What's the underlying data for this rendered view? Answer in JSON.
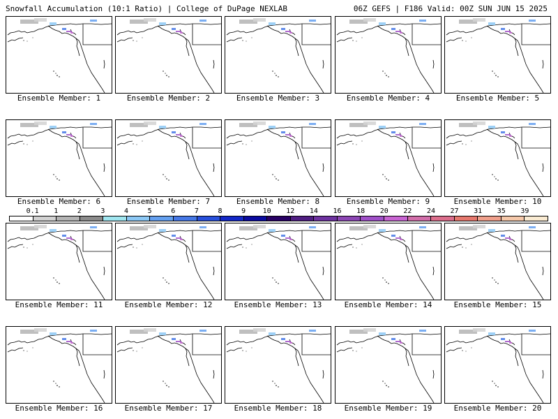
{
  "header": {
    "left_title": "Snowfall Accumulation (10:1 Ratio) | College of DuPage NEXLAB",
    "right_title": "06Z GEFS | F186 Valid: 00Z SUN JUN 15 2025"
  },
  "colorbar": {
    "labels": [
      "0.1",
      "1",
      "2",
      "3",
      "4",
      "5",
      "6",
      "7",
      "8",
      "9",
      "10",
      "12",
      "14",
      "16",
      "18",
      "20",
      "22",
      "24",
      "27",
      "31",
      "35",
      "39"
    ],
    "colors": [
      "#ffffff",
      "#d2d2d2",
      "#b4b4b4",
      "#8c8c8c",
      "#a0e6f0",
      "#8cc8f5",
      "#64a0f0",
      "#4678e6",
      "#2850dc",
      "#1428c8",
      "#0a0aa0",
      "#280064",
      "#501e82",
      "#6e32a0",
      "#8c46b4",
      "#a050c8",
      "#c864d2",
      "#d26eaa",
      "#dc6e8c",
      "#e6786e",
      "#f0a08c",
      "#f5c8aa",
      "#faebd2"
    ]
  },
  "panels": [
    {
      "label": "Ensemble Member: 1"
    },
    {
      "label": "Ensemble Member: 2"
    },
    {
      "label": "Ensemble Member: 3"
    },
    {
      "label": "Ensemble Member: 4"
    },
    {
      "label": "Ensemble Member: 5"
    },
    {
      "label": "Ensemble Member: 6"
    },
    {
      "label": "Ensemble Member: 7"
    },
    {
      "label": "Ensemble Member: 8"
    },
    {
      "label": "Ensemble Member: 9"
    },
    {
      "label": "Ensemble Member: 10"
    },
    {
      "label": "Ensemble Member: 11"
    },
    {
      "label": "Ensemble Member: 12"
    },
    {
      "label": "Ensemble Member: 13"
    },
    {
      "label": "Ensemble Member: 14"
    },
    {
      "label": "Ensemble Member: 15"
    },
    {
      "label": "Ensemble Member: 16"
    },
    {
      "label": "Ensemble Member: 17"
    },
    {
      "label": "Ensemble Member: 18"
    },
    {
      "label": "Ensemble Member: 19"
    },
    {
      "label": "Ensemble Member: 20"
    }
  ]
}
